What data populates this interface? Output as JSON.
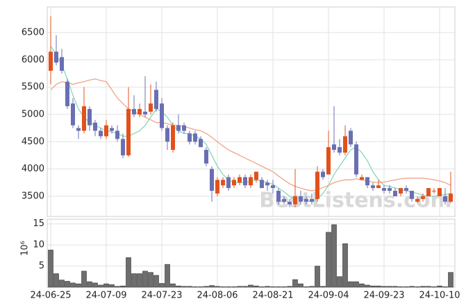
{
  "chart_data": [
    {
      "type": "candlestick",
      "categories": [
        "24-06-25",
        null,
        null,
        null,
        null,
        null,
        null,
        null,
        null,
        null,
        "24-07-09",
        null,
        null,
        null,
        null,
        null,
        null,
        null,
        null,
        null,
        "24-07-23",
        null,
        null,
        null,
        null,
        null,
        null,
        null,
        null,
        null,
        "24-08-06",
        null,
        null,
        null,
        null,
        null,
        null,
        null,
        null,
        null,
        "24-08-21",
        null,
        null,
        null,
        null,
        null,
        null,
        null,
        null,
        null,
        "24-09-04",
        null,
        null,
        null,
        null,
        null,
        null,
        null,
        null,
        null,
        "24-09-23",
        null,
        null,
        null,
        null,
        null,
        null,
        null,
        null,
        null,
        "24-10-10",
        null,
        null
      ],
      "open": [
        5800,
        6150,
        6050,
        5600,
        5200,
        4750,
        4700,
        5100,
        4850,
        4700,
        4600,
        4750,
        4700,
        4550,
        4250,
        5100,
        5000,
        5050,
        5050,
        5450,
        5200,
        4750,
        4350,
        4800,
        4800,
        4650,
        4650,
        4550,
        4350,
        4000,
        3550,
        3700,
        3850,
        3700,
        3750,
        3850,
        3700,
        3800,
        3800,
        3750,
        3700,
        3600,
        3450,
        3400,
        3350,
        3500,
        3450,
        3450,
        3450,
        3950,
        3900,
        4450,
        4400,
        4300,
        4700,
        4450,
        3800,
        3850,
        3700,
        3650,
        3650,
        3650,
        3600,
        3550,
        3650,
        3600,
        3400,
        3450,
        3500,
        3600,
        3500,
        3500,
        3400
      ],
      "high": [
        6800,
        6450,
        6200,
        5650,
        5300,
        4800,
        5500,
        5150,
        4900,
        4750,
        4900,
        4800,
        4800,
        4650,
        5500,
        5350,
        5200,
        5700,
        5550,
        5600,
        5300,
        4800,
        4850,
        5000,
        4850,
        4700,
        4700,
        4600,
        4400,
        4050,
        3850,
        3850,
        3900,
        3850,
        3900,
        3900,
        3900,
        3950,
        3850,
        3800,
        3800,
        3650,
        3500,
        3450,
        4000,
        3600,
        3500,
        3550,
        4050,
        4000,
        4700,
        5150,
        4550,
        4800,
        4750,
        4500,
        3900,
        3850,
        3750,
        3800,
        3700,
        3700,
        3650,
        3650,
        3700,
        3600,
        3500,
        3550,
        3650,
        3650,
        3650,
        3650,
        3950
      ],
      "low": [
        5550,
        5900,
        5750,
        5100,
        4750,
        4550,
        4650,
        4700,
        4600,
        4550,
        4550,
        4650,
        4500,
        4200,
        4220,
        4950,
        4950,
        4950,
        5000,
        5050,
        4700,
        4350,
        4300,
        4650,
        4650,
        4450,
        4450,
        4400,
        4050,
        3400,
        3500,
        3650,
        3600,
        3650,
        3700,
        3650,
        3650,
        3750,
        3650,
        3600,
        3550,
        3350,
        3350,
        3300,
        3300,
        3350,
        3350,
        3350,
        3400,
        3800,
        3900,
        4300,
        4250,
        4250,
        4400,
        3850,
        3800,
        3650,
        3600,
        3650,
        3550,
        3550,
        3500,
        3500,
        3550,
        3400,
        3380,
        3400,
        3500,
        3550,
        3500,
        3350,
        3380
      ],
      "close": [
        6150,
        5950,
        5800,
        5150,
        4800,
        4700,
        5150,
        4800,
        4700,
        4600,
        4800,
        4700,
        4550,
        4250,
        5100,
        5000,
        5100,
        5000,
        5200,
        5100,
        4750,
        4500,
        4800,
        4700,
        4700,
        4500,
        4500,
        4400,
        4100,
        3600,
        3800,
        3800,
        3650,
        3800,
        3850,
        3700,
        3850,
        3950,
        3650,
        3700,
        3650,
        3400,
        3400,
        3350,
        3500,
        3400,
        3400,
        3400,
        3950,
        3850,
        4400,
        4350,
        4300,
        4600,
        4450,
        3900,
        3850,
        3700,
        3650,
        3700,
        3600,
        3600,
        3500,
        3650,
        3600,
        3450,
        3450,
        3500,
        3650,
        3600,
        3650,
        3400,
        3550
      ],
      "up_color": "#e2511c",
      "down_color": "#6a6fb3",
      "series": [
        {
          "color": "#86d6b8",
          "values": [
            6250,
            6100,
            5900,
            5650,
            5350,
            5100,
            4950,
            4850,
            4800,
            4750,
            4700,
            4680,
            4650,
            4600,
            4600,
            4650,
            4700,
            4800,
            4950,
            5100,
            5050,
            4950,
            4800,
            4700,
            4650,
            4650,
            4600,
            4550,
            4450,
            4250,
            4050,
            3900,
            3800,
            3750,
            3750,
            3750,
            3780,
            3800,
            3780,
            3750,
            3720,
            3650,
            3580,
            3500,
            3450,
            3450,
            3420,
            3400,
            3450,
            3550,
            3700,
            3900,
            4050,
            4200,
            4350,
            4400,
            4300,
            4150,
            3950,
            3800,
            3700,
            3680,
            3650,
            3620,
            3600,
            3580,
            3550,
            3520,
            3500,
            3500,
            3520,
            3530,
            3550
          ]
        },
        {
          "color": "#f0a488",
          "values": [
            5450,
            5550,
            5600,
            5580,
            5550,
            5580,
            5600,
            5630,
            5650,
            5620,
            5600,
            5450,
            5300,
            5200,
            5100,
            5050,
            5000,
            4950,
            4900,
            4850,
            4850,
            4830,
            4800,
            4800,
            4780,
            4750,
            4720,
            4700,
            4650,
            4580,
            4500,
            4420,
            4350,
            4300,
            4250,
            4200,
            4150,
            4100,
            4050,
            4000,
            3950,
            3870,
            3800,
            3730,
            3680,
            3650,
            3620,
            3600,
            3620,
            3660,
            3700,
            3750,
            3780,
            3800,
            3800,
            3820,
            3800,
            3780,
            3760,
            3750,
            3760,
            3780,
            3800,
            3820,
            3830,
            3830,
            3830,
            3830,
            3820,
            3800,
            3780,
            3750,
            3700
          ]
        }
      ],
      "ylim": [
        3130,
        6970
      ],
      "yticks": [
        3500,
        4000,
        4500,
        5000,
        5500,
        6000,
        6500
      ],
      "grid": true,
      "watermark": "BestListens.com"
    },
    {
      "type": "bar",
      "ylabel": "10⁶",
      "color": "#6e6e6e",
      "values": [
        8.8,
        3.2,
        1.7,
        1.4,
        1.0,
        0.8,
        3.8,
        1.3,
        1.0,
        0.5,
        0.8,
        0.6,
        0.2,
        0.3,
        7.0,
        3.2,
        3.2,
        3.8,
        3.5,
        2.8,
        0.9,
        5.4,
        0.8,
        0.3,
        0.2,
        0.2,
        0.1,
        0.1,
        0.2,
        0.4,
        0.2,
        0.1,
        0.1,
        0.1,
        0.2,
        0.2,
        0.5,
        0.3,
        0.1,
        0.2,
        0.1,
        0.1,
        0.1,
        0.2,
        1.8,
        0.8,
        0.1,
        0.2,
        5.0,
        0.2,
        13.0,
        14.8,
        2.5,
        10.3,
        1.3,
        1.3,
        0.8,
        0.5,
        0.3,
        0.3,
        0.2,
        0.2,
        0.2,
        0.1,
        0.1,
        0.2,
        0.1,
        0.2,
        0.2,
        0.1,
        0.3,
        0.1,
        3.5
      ],
      "ylim": [
        0,
        16.1
      ],
      "yticks": [
        5,
        10,
        15
      ],
      "grid": true
    }
  ]
}
